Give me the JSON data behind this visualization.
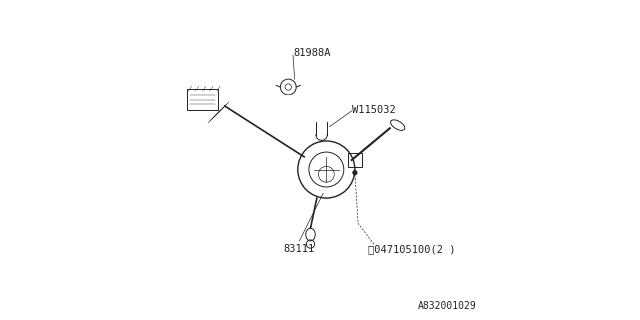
{
  "background_color": "#ffffff",
  "line_color": "#222222",
  "label_color": "#222222",
  "part_number_bottom_right": "A832001029",
  "font_size_labels": 7.5,
  "font_size_partnumber": 7,
  "figsize": [
    6.4,
    3.2
  ],
  "dpi": 100
}
